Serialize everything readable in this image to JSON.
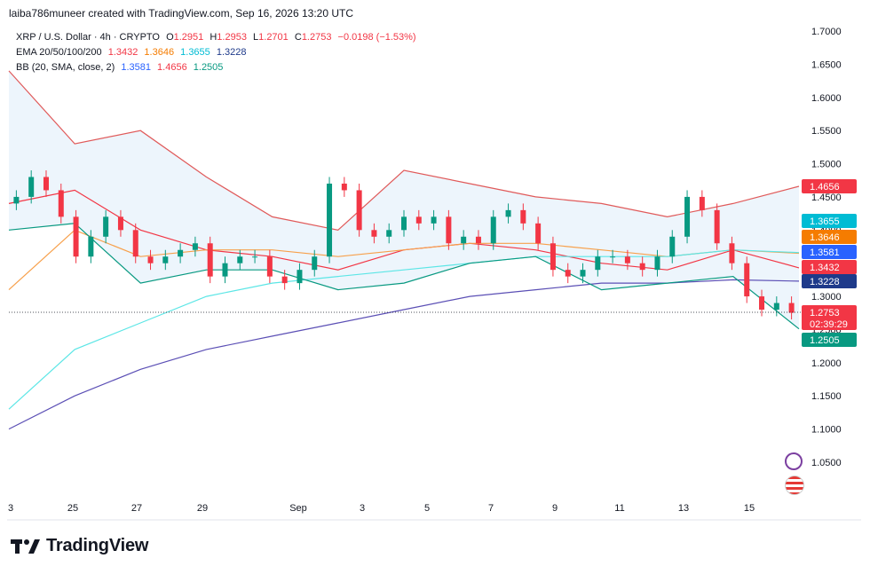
{
  "header": {
    "created_by": "laiba786muneer created with TradingView.com, Sep 16, 2026 13:20 UTC"
  },
  "legend": {
    "symbol_line": "XRP / U.S. Dollar · 4h · CRYPTO",
    "ohlc": {
      "o_label": "O",
      "o": "1.2951",
      "h_label": "H",
      "h": "1.2953",
      "l_label": "L",
      "l": "1.2701",
      "c_label": "C",
      "c": "1.2753",
      "change": "−0.0198 (−1.53%)"
    },
    "ema_label": "EMA 20/50/100/200",
    "ema_values": [
      "1.3432",
      "1.3646",
      "1.3655",
      "1.3228"
    ],
    "bb_label": "BB (20, SMA, close, 2)",
    "bb_values": [
      "1.3581",
      "1.4656",
      "1.2505"
    ]
  },
  "colors": {
    "up": "#089981",
    "down": "#f23645",
    "ema20": "#f23645",
    "ema50": "#f7a04b",
    "ema100": "#5ce6e6",
    "ema200": "#5b4fb5",
    "bb_basis": "#2962ff",
    "bb_upper": "#e05a5a",
    "bb_lower": "#089981",
    "bb_fill": "#e8f3fb"
  },
  "price_axis": {
    "ticks": [
      "1.7000",
      "1.6500",
      "1.6000",
      "1.5500",
      "1.5000",
      "1.4500",
      "1.4000",
      "1.3500",
      "1.3000",
      "1.2500",
      "1.2000",
      "1.1500",
      "1.1000",
      "1.0500"
    ],
    "tags": [
      {
        "label": "1.4656",
        "color": "#f23645"
      },
      {
        "label": "1.3655",
        "color": "#00bcd4"
      },
      {
        "label": "1.3646",
        "color": "#f57c00"
      },
      {
        "label": "1.3581",
        "color": "#2962ff"
      },
      {
        "label": "1.3432",
        "color": "#f23645"
      },
      {
        "label": "1.3228",
        "color": "#1e3a8a"
      },
      {
        "label": "1.2753",
        "color": "#f23645",
        "timer": "02:39:29"
      },
      {
        "label": "1.2505",
        "color": "#089981"
      }
    ]
  },
  "time_axis": {
    "ticks": [
      "3",
      "25",
      "27",
      "29",
      "Sep",
      "3",
      "5",
      "7",
      "9",
      "11",
      "13",
      "15"
    ]
  },
  "chart_data": {
    "type": "line",
    "title": "XRP / U.S. Dollar · 4h · CRYPTO",
    "ylim": [
      1.0,
      1.72
    ],
    "grid": false,
    "x": [
      "Aug 23",
      "Aug 25",
      "Aug 27",
      "Aug 29",
      "Sep 1",
      "Sep 3",
      "Sep 5",
      "Sep 7",
      "Sep 9",
      "Sep 11",
      "Sep 13",
      "Sep 15",
      "Sep 16"
    ],
    "series": [
      {
        "name": "EMA 20",
        "values": [
          1.44,
          1.46,
          1.4,
          1.37,
          1.36,
          1.34,
          1.37,
          1.38,
          1.37,
          1.35,
          1.34,
          1.37,
          1.343
        ]
      },
      {
        "name": "EMA 50",
        "values": [
          1.31,
          1.4,
          1.36,
          1.37,
          1.37,
          1.36,
          1.37,
          1.38,
          1.38,
          1.37,
          1.36,
          1.37,
          1.365
        ]
      },
      {
        "name": "EMA 100",
        "values": [
          1.13,
          1.22,
          1.26,
          1.3,
          1.32,
          1.33,
          1.34,
          1.35,
          1.36,
          1.36,
          1.36,
          1.37,
          1.366
        ]
      },
      {
        "name": "EMA 200",
        "values": [
          1.1,
          1.15,
          1.19,
          1.22,
          1.24,
          1.26,
          1.28,
          1.3,
          1.31,
          1.32,
          1.32,
          1.325,
          1.323
        ]
      },
      {
        "name": "BB upper",
        "values": [
          1.64,
          1.53,
          1.55,
          1.48,
          1.42,
          1.4,
          1.49,
          1.47,
          1.45,
          1.44,
          1.42,
          1.44,
          1.466
        ]
      },
      {
        "name": "BB lower",
        "values": [
          1.4,
          1.41,
          1.32,
          1.34,
          1.34,
          1.31,
          1.32,
          1.35,
          1.36,
          1.31,
          1.32,
          1.33,
          1.251
        ]
      }
    ],
    "candles_close": [
      1.45,
      1.48,
      1.46,
      1.42,
      1.36,
      1.39,
      1.42,
      1.4,
      1.36,
      1.35,
      1.36,
      1.37,
      1.38,
      1.33,
      1.35,
      1.36,
      1.36,
      1.33,
      1.32,
      1.34,
      1.36,
      1.47,
      1.46,
      1.4,
      1.39,
      1.4,
      1.42,
      1.41,
      1.42,
      1.38,
      1.39,
      1.38,
      1.42,
      1.43,
      1.41,
      1.38,
      1.34,
      1.33,
      1.34,
      1.36,
      1.36,
      1.35,
      1.34,
      1.36,
      1.39,
      1.45,
      1.43,
      1.38,
      1.35,
      1.3,
      1.28,
      1.29,
      1.2753
    ]
  }
}
